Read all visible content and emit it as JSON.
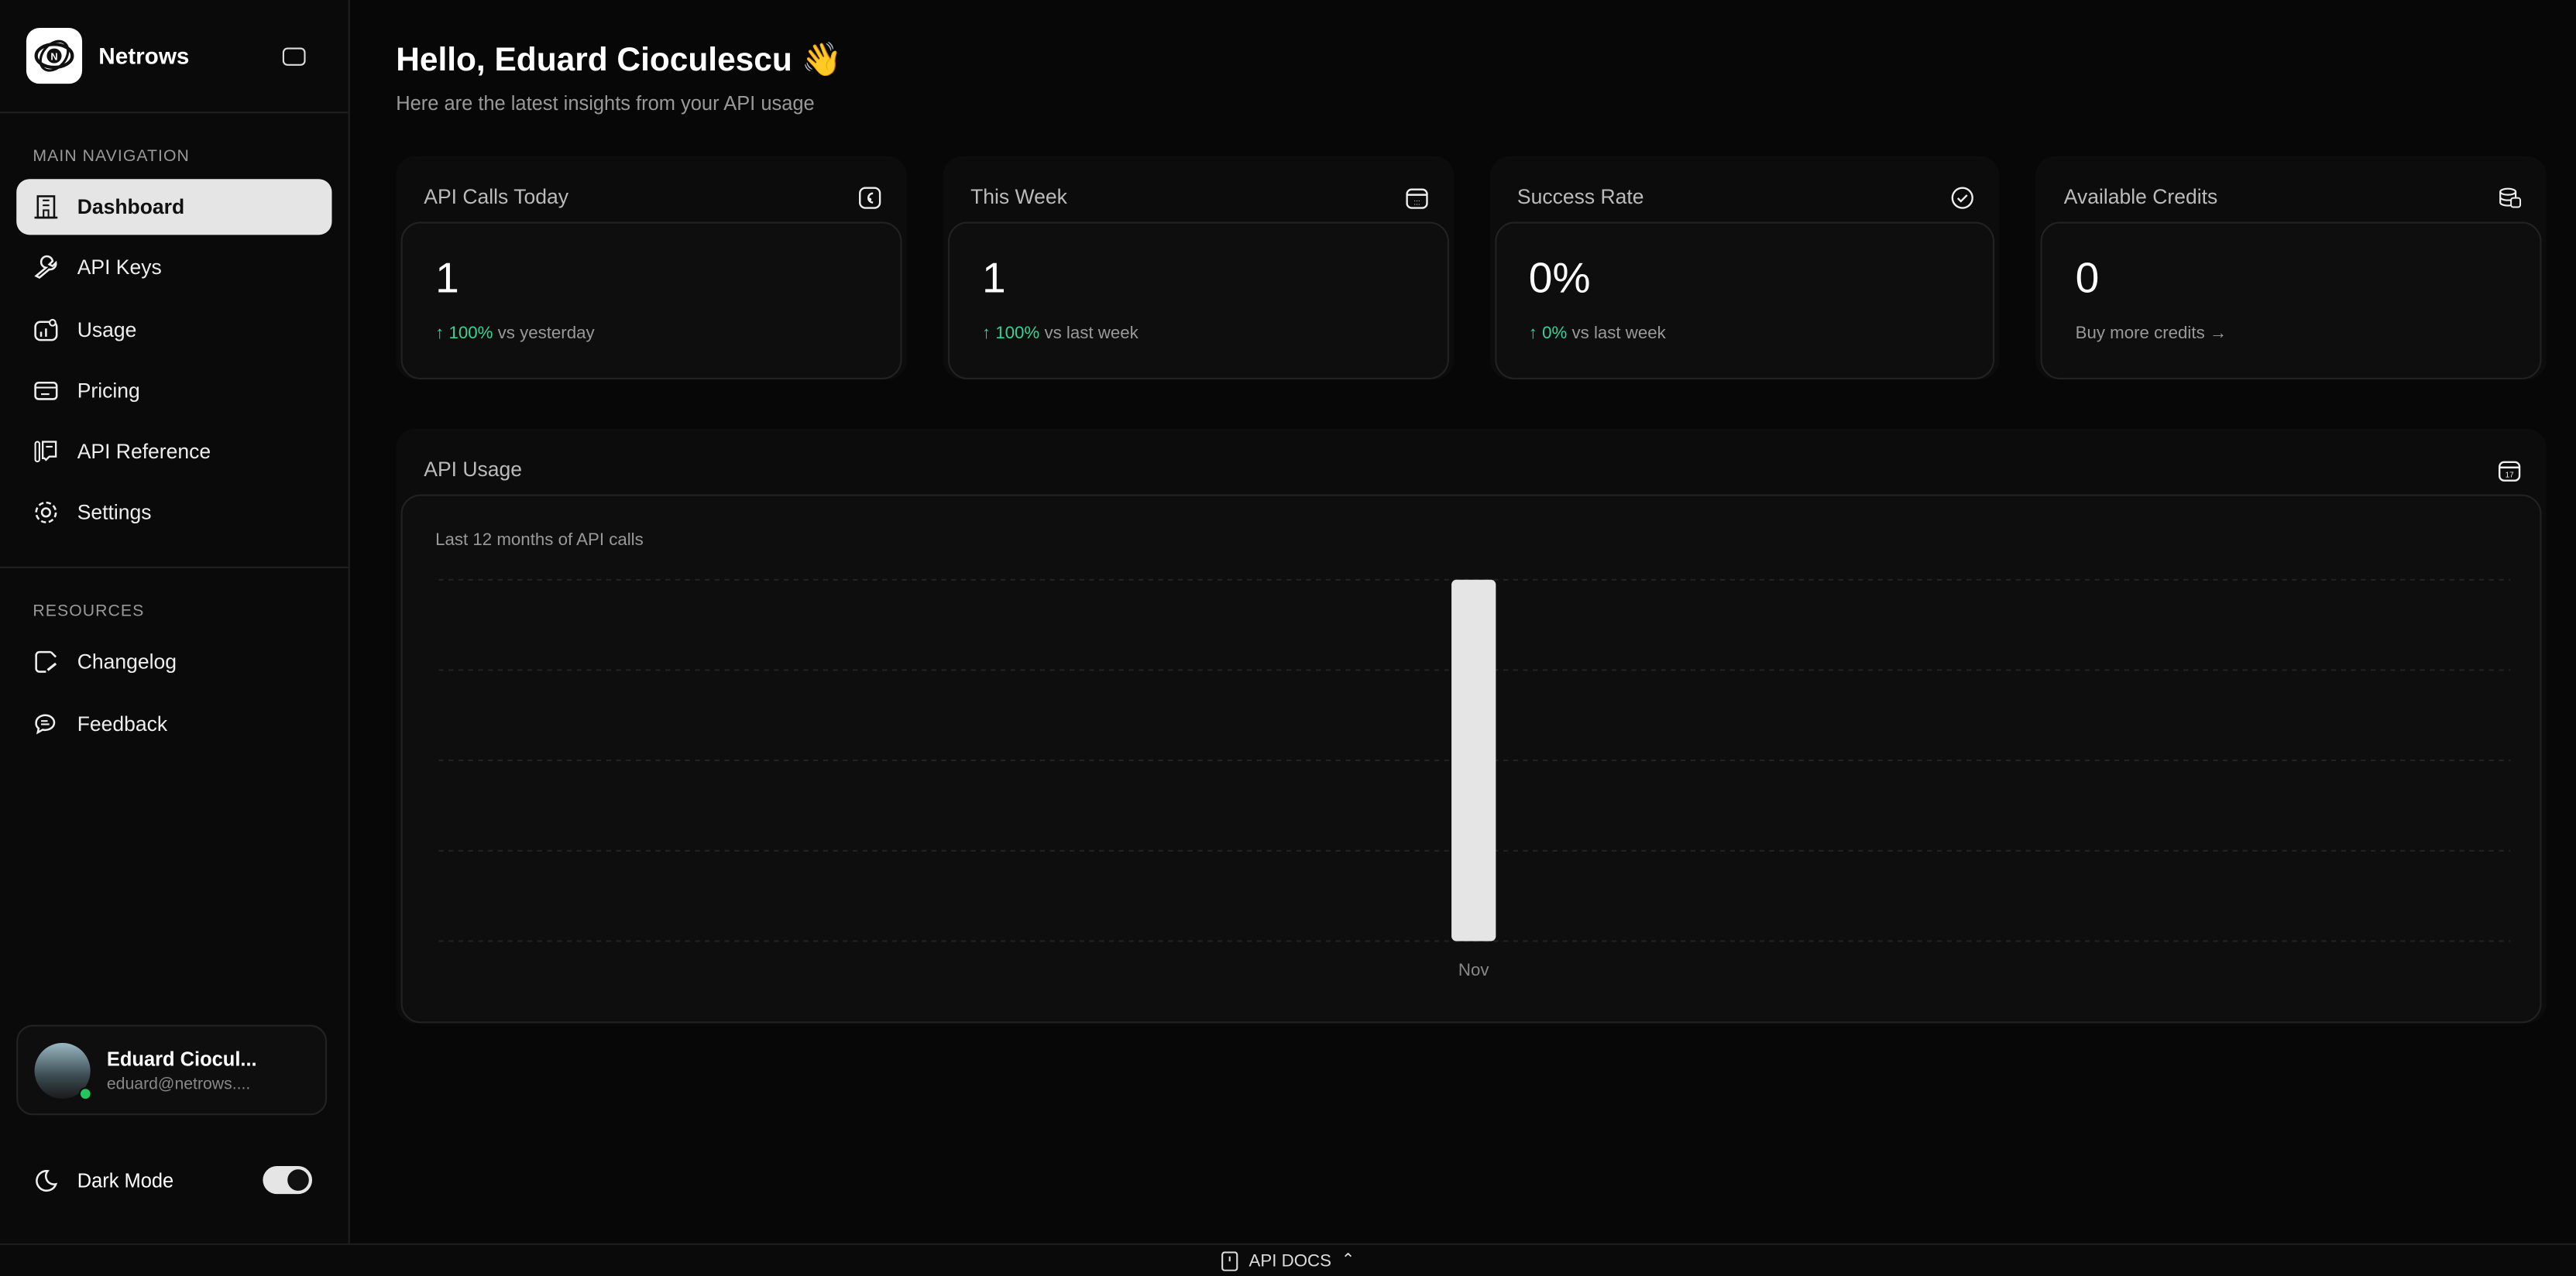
{
  "app": {
    "name": "Netrows"
  },
  "sidebar": {
    "main_label": "MAIN NAVIGATION",
    "items": [
      {
        "label": "Dashboard",
        "icon": "building-icon"
      },
      {
        "label": "API Keys",
        "icon": "wrench-icon"
      },
      {
        "label": "Usage",
        "icon": "chart-icon"
      },
      {
        "label": "Pricing",
        "icon": "card-icon"
      },
      {
        "label": "API Reference",
        "icon": "reference-icon"
      },
      {
        "label": "Settings",
        "icon": "gear-icon"
      }
    ],
    "resources_label": "RESOURCES",
    "resources": [
      {
        "label": "Changelog",
        "icon": "note-edit-icon"
      },
      {
        "label": "Feedback",
        "icon": "chat-icon"
      }
    ],
    "user": {
      "name": "Eduard Ciocul...",
      "email": "eduard@netrows...."
    },
    "dark_mode": {
      "label": "Dark Mode",
      "enabled": true
    }
  },
  "header": {
    "greeting": "Hello, Eduard Cioculescu 👋",
    "subtitle": "Here are the latest insights from your API usage"
  },
  "stats": [
    {
      "title": "API Calls Today",
      "value": "1",
      "delta": "↑ 100%",
      "suffix": " vs yesterday",
      "icon": "gauge-icon"
    },
    {
      "title": "This Week",
      "value": "1",
      "delta": "↑ 100%",
      "suffix": " vs last week",
      "icon": "calendar-icon"
    },
    {
      "title": "Success Rate",
      "value": "0%",
      "delta": "↑ 0%",
      "suffix": " vs last week",
      "icon": "check-circle-icon"
    },
    {
      "title": "Available Credits",
      "value": "0",
      "delta": "",
      "suffix": "Buy more credits →",
      "icon": "coins-icon"
    }
  ],
  "usage": {
    "title": "API Usage",
    "subtitle": "Last 12 months of API calls"
  },
  "chart_data": {
    "type": "bar",
    "title": "",
    "categories": [
      "Nov"
    ],
    "values": [
      1
    ],
    "grid": true,
    "bar_color": "#e5e5e5"
  },
  "footer": {
    "label": "API DOCS"
  },
  "colors": {
    "accent_green": "#34d399",
    "online": "#22c55e"
  }
}
